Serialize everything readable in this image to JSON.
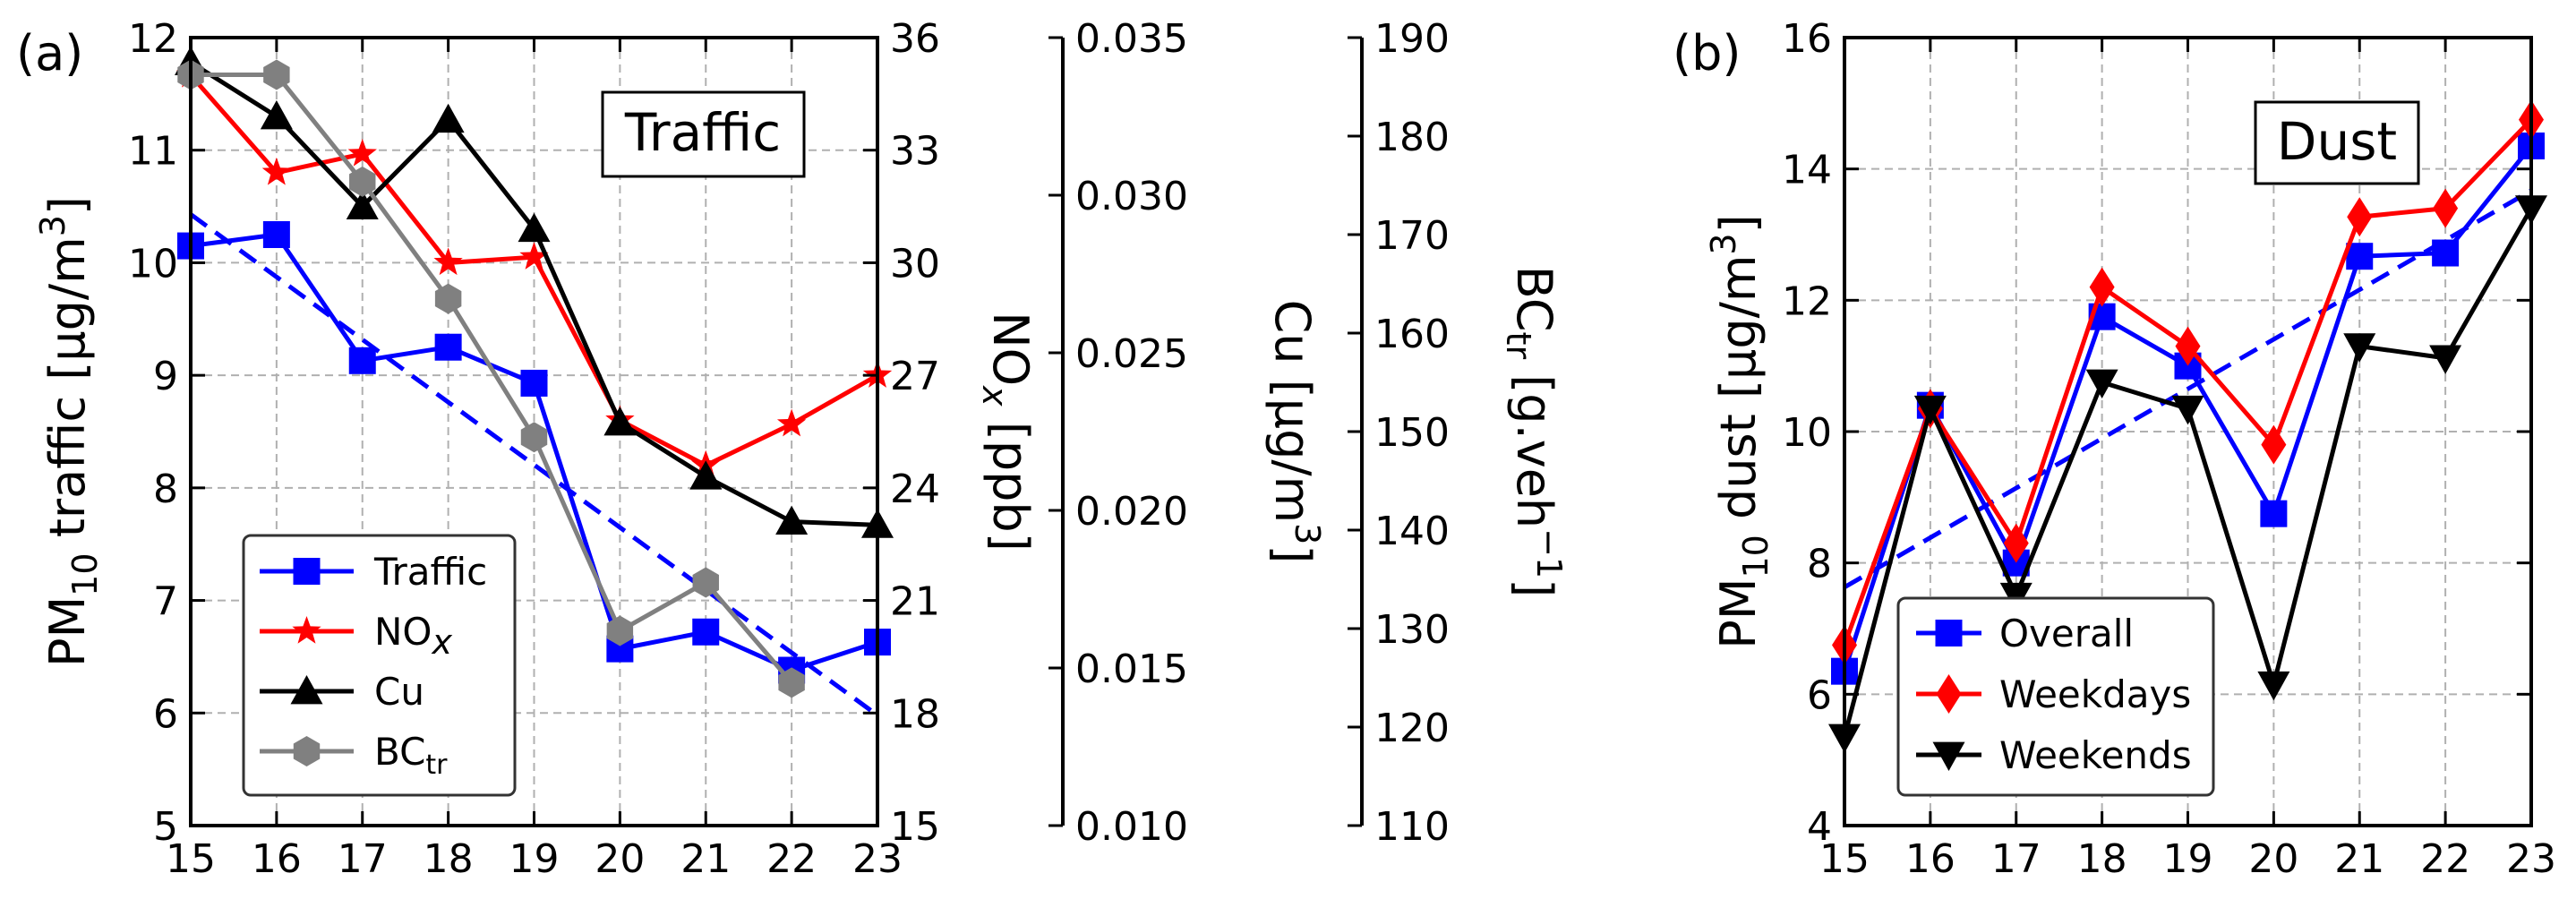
{
  "chart_data": [
    {
      "panel_label": "(a)",
      "type": "line",
      "annotation": "Traffic",
      "x": [
        15,
        16,
        17,
        18,
        19,
        20,
        21,
        22,
        23
      ],
      "xlim": [
        15,
        23
      ],
      "xticks": [
        "15",
        "16",
        "17",
        "18",
        "19",
        "20",
        "21",
        "22",
        "23"
      ],
      "grid": true,
      "legend_position": "lower-left",
      "axes": {
        "y_left": {
          "label_main": "PM",
          "label_sub": "10",
          "label_rest": " traffic [µg/m",
          "label_sup": "3",
          "label_end": "]",
          "ylim": [
            5,
            12
          ],
          "ticks": [
            "5",
            "6",
            "7",
            "8",
            "9",
            "10",
            "11",
            "12"
          ]
        },
        "y_nox": {
          "label_main": "NO",
          "label_ital": "x",
          "label_end": " [ppb]",
          "ylim": [
            15,
            36
          ],
          "ticks": [
            "15",
            "18",
            "21",
            "24",
            "27",
            "30",
            "33",
            "36"
          ]
        },
        "y_cu": {
          "label_main": "Cu [µg/m",
          "label_sup": "3",
          "label_end": "]",
          "ylim": [
            0.01,
            0.035
          ],
          "ticks": [
            "0.010",
            "0.015",
            "0.020",
            "0.025",
            "0.030",
            "0.035"
          ]
        },
        "y_bc": {
          "label_main": "BC",
          "label_sub": "tr",
          "label_rest": " [g.veh",
          "label_sup": "−1",
          "label_end": "]",
          "ylim": [
            110,
            190
          ],
          "ticks": [
            "110",
            "120",
            "130",
            "140",
            "150",
            "160",
            "170",
            "180",
            "190"
          ]
        }
      },
      "series": [
        {
          "name": "Traffic",
          "legend_main": "Traffic",
          "axis": "y_left",
          "color": "#0000ff",
          "marker": "square",
          "values": [
            10.15,
            10.25,
            9.13,
            9.25,
            8.93,
            6.57,
            6.72,
            6.38,
            6.63
          ]
        },
        {
          "name": "NOx",
          "legend_main": "NO",
          "legend_ital": "x",
          "axis": "y_nox",
          "color": "#ff0000",
          "marker": "star",
          "values": [
            35.0,
            32.4,
            32.9,
            30.0,
            30.15,
            25.8,
            24.6,
            25.7,
            27.0
          ]
        },
        {
          "name": "Cu",
          "legend_main": "Cu",
          "axis": "y_left",
          "color": "#000000",
          "marker": "triangle-up",
          "values": [
            11.78,
            11.3,
            10.5,
            11.27,
            10.3,
            8.58,
            8.1,
            7.7,
            7.67
          ]
        },
        {
          "name": "BCtr",
          "legend_main": "BC",
          "legend_sub": "tr",
          "axis": "y_left",
          "color": "#808080",
          "marker": "hexagon",
          "values": [
            11.67,
            11.67,
            10.72,
            9.68,
            8.45,
            6.73,
            7.16,
            6.27,
            null
          ]
        }
      ],
      "trendline": {
        "series": "Traffic",
        "color": "#0000ff",
        "dashed": true,
        "x": [
          15,
          23
        ],
        "y": [
          10.43,
          5.98
        ]
      }
    },
    {
      "panel_label": "(b)",
      "type": "line",
      "annotation": "Dust",
      "x": [
        15,
        16,
        17,
        18,
        19,
        20,
        21,
        22,
        23
      ],
      "xlim": [
        15,
        23
      ],
      "xticks": [
        "15",
        "16",
        "17",
        "18",
        "19",
        "20",
        "21",
        "22",
        "23"
      ],
      "grid": true,
      "legend_position": "lower-left",
      "y_label_main": "PM",
      "y_label_sub": "10",
      "y_label_rest": " dust [µg/m",
      "y_label_sup": "3",
      "y_label_end": "]",
      "ylim": [
        4,
        16
      ],
      "yticks": [
        "4",
        "6",
        "8",
        "10",
        "12",
        "14",
        "16"
      ],
      "series": [
        {
          "name": "Overall",
          "color": "#0000ff",
          "marker": "square",
          "values": [
            6.35,
            10.4,
            8.0,
            11.75,
            11.0,
            8.75,
            12.67,
            12.72,
            14.35
          ]
        },
        {
          "name": "Weekdays",
          "color": "#ff0000",
          "marker": "diamond",
          "values": [
            6.75,
            10.35,
            8.3,
            12.2,
            11.3,
            9.8,
            13.27,
            13.4,
            14.75
          ]
        },
        {
          "name": "Weekends",
          "color": "#000000",
          "marker": "triangle-down",
          "values": [
            5.35,
            10.35,
            7.5,
            10.75,
            10.35,
            6.15,
            11.3,
            11.12,
            13.4
          ]
        }
      ],
      "trendline": {
        "series": "Overall",
        "color": "#0000ff",
        "dashed": true,
        "x": [
          15,
          23
        ],
        "y": [
          7.63,
          13.67
        ]
      }
    }
  ]
}
